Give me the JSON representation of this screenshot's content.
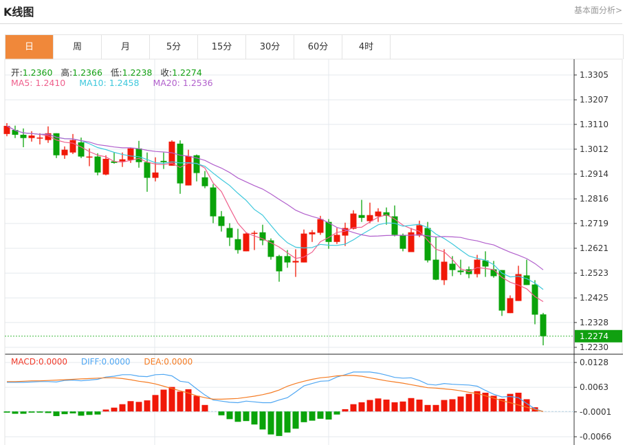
{
  "header": {
    "title": "K线图",
    "link": "基本面分析>"
  },
  "tabs": [
    {
      "label": "日",
      "active": true
    },
    {
      "label": "周"
    },
    {
      "label": "月"
    },
    {
      "label": "5分"
    },
    {
      "label": "15分"
    },
    {
      "label": "30分"
    },
    {
      "label": "60分"
    },
    {
      "label": "4时"
    }
  ],
  "ohlc": {
    "open_label": "开:",
    "open": "1.2360",
    "high_label": "高:",
    "high": "1.2366",
    "low_label": "低:",
    "low": "1.2238",
    "close_label": "收:",
    "close": "1.2274"
  },
  "ma": {
    "ma5_label": "MA5:",
    "ma5": "1.2410",
    "ma10_label": "MA10:",
    "ma10": "1.2458",
    "ma20_label": "MA20:",
    "ma20": "1.2536"
  },
  "macd_legend": {
    "macd_label": "MACD:",
    "macd": "0.0000",
    "diff_label": "DIFF:",
    "diff": "0.0000",
    "dea_label": "DEA:",
    "dea": "0.0000"
  },
  "colors": {
    "up": "#f01808",
    "down": "#0aa30a",
    "ma5": "#ef5f8c",
    "ma10": "#3ec8dc",
    "ma20": "#b15fcc",
    "diff": "#4ea6f2",
    "dea": "#f57b22",
    "active_tab": "#f0883a"
  },
  "chart_data": [
    {
      "type": "candlestick",
      "price_axis_ticks": [
        "1.3305",
        "1.3207",
        "1.3110",
        "1.3012",
        "1.2914",
        "1.2816",
        "1.2719",
        "1.2621",
        "1.2523",
        "1.2425",
        "1.2328",
        "1.2230"
      ],
      "ylim": [
        1.223,
        1.3305
      ],
      "current_price": "1.2274",
      "candles_ohlc": [
        [
          1.3072,
          1.3115,
          1.3063,
          1.3104
        ],
        [
          1.3088,
          1.3105,
          1.3056,
          1.3069
        ],
        [
          1.3069,
          1.3094,
          1.302,
          1.3056
        ],
        [
          1.3056,
          1.3083,
          1.3042,
          1.3066
        ],
        [
          1.3056,
          1.3075,
          1.3031,
          1.3058
        ],
        [
          1.3048,
          1.3102,
          1.3037,
          1.3075
        ],
        [
          1.3075,
          1.3075,
          1.2977,
          1.2988
        ],
        [
          1.2988,
          1.3023,
          1.2974,
          1.301
        ],
        [
          1.2999,
          1.3072,
          1.2993,
          1.3048
        ],
        [
          1.3039,
          1.3058,
          1.2977,
          1.2983
        ],
        [
          1.298,
          1.3015,
          1.2945,
          1.2983
        ],
        [
          1.2983,
          1.2996,
          1.2909,
          1.292
        ],
        [
          1.2912,
          1.2988,
          1.2909,
          1.2974
        ],
        [
          1.2964,
          1.2999,
          1.2955,
          1.2958
        ],
        [
          1.2964,
          1.2999,
          1.2942,
          1.2972
        ],
        [
          1.2969,
          1.3018,
          1.2958,
          1.3015
        ],
        [
          1.3015,
          1.3045,
          1.2939,
          1.2961
        ],
        [
          1.2961,
          1.2999,
          1.2844,
          1.2899
        ],
        [
          1.2899,
          1.298,
          1.2885,
          1.292
        ],
        [
          1.2966,
          1.2999,
          1.2934,
          1.2961
        ],
        [
          1.2947,
          1.3047,
          1.2947,
          1.3042
        ],
        [
          1.3034,
          1.3047,
          1.2836,
          1.2877
        ],
        [
          1.2869,
          1.301,
          1.2869,
          1.2985
        ],
        [
          1.2988,
          1.2991,
          1.2885,
          1.2918
        ],
        [
          1.2901,
          1.2926,
          1.2858,
          1.2866
        ],
        [
          1.2861,
          1.2874,
          1.272,
          1.2747
        ],
        [
          1.2747,
          1.2768,
          1.2687,
          1.2709
        ],
        [
          1.2701,
          1.272,
          1.263,
          1.2663
        ],
        [
          1.2657,
          1.2698,
          1.26,
          1.2614
        ],
        [
          1.2609,
          1.2684,
          1.2609,
          1.2679
        ],
        [
          1.2679,
          1.269,
          1.2614,
          1.2682
        ],
        [
          1.2684,
          1.2714,
          1.2633,
          1.2652
        ],
        [
          1.2652,
          1.266,
          1.2576,
          1.2587
        ],
        [
          1.259,
          1.2595,
          1.2489,
          1.253
        ],
        [
          1.259,
          1.2614,
          1.2544,
          1.2565
        ],
        [
          1.2565,
          1.2617,
          1.2508,
          1.2571
        ],
        [
          1.2565,
          1.2695,
          1.2565,
          1.2679
        ],
        [
          1.2676,
          1.2693,
          1.2646,
          1.2684
        ],
        [
          1.2682,
          1.2749,
          1.2674,
          1.2736
        ],
        [
          1.2725,
          1.2736,
          1.2619,
          1.2646
        ],
        [
          1.2646,
          1.2701,
          1.2638,
          1.2674
        ],
        [
          1.2671,
          1.2722,
          1.263,
          1.2701
        ],
        [
          1.2698,
          1.2771,
          1.2695,
          1.2758
        ],
        [
          1.2752,
          1.2812,
          1.2725,
          1.2741
        ],
        [
          1.2728,
          1.2801,
          1.272,
          1.2752
        ],
        [
          1.2747,
          1.2779,
          1.2725,
          1.2766
        ],
        [
          1.2763,
          1.2782,
          1.2714,
          1.2749
        ],
        [
          1.2747,
          1.279,
          1.2668,
          1.2674
        ],
        [
          1.2674,
          1.2679,
          1.2609,
          1.2619
        ],
        [
          1.2606,
          1.2701,
          1.2606,
          1.2684
        ],
        [
          1.2671,
          1.273,
          1.2665,
          1.2712
        ],
        [
          1.2701,
          1.2725,
          1.2565,
          1.2573
        ],
        [
          1.2576,
          1.2665,
          1.2495,
          1.2497
        ],
        [
          1.2495,
          1.2617,
          1.2476,
          1.2568
        ],
        [
          1.256,
          1.259,
          1.2511,
          1.2535
        ],
        [
          1.2533,
          1.2576,
          1.2516,
          1.2527
        ],
        [
          1.2538,
          1.2549,
          1.2503,
          1.2519
        ],
        [
          1.2519,
          1.2595,
          1.2506,
          1.2576
        ],
        [
          1.2573,
          1.2609,
          1.2508,
          1.2549
        ],
        [
          1.2538,
          1.2571,
          1.2505,
          1.2511
        ],
        [
          1.2535,
          1.2535,
          1.2354,
          1.2375
        ],
        [
          1.2365,
          1.2435,
          1.2365,
          1.2424
        ],
        [
          1.2413,
          1.2552,
          1.2413,
          1.2519
        ],
        [
          1.2514,
          1.2576,
          1.2476,
          1.2476
        ],
        [
          1.2478,
          1.2495,
          1.2321,
          1.2359
        ],
        [
          1.236,
          1.2366,
          1.2238,
          1.2274
        ]
      ],
      "ma_periods": [
        5,
        10,
        20
      ]
    },
    {
      "type": "bar+line",
      "name": "MACD",
      "axis_ticks": [
        "0.0128",
        "0.0063",
        "-0.0001",
        "-0.0066"
      ],
      "ylim": [
        -0.0066,
        0.0128
      ],
      "macd": [
        -0.0003,
        -0.0006,
        -0.0006,
        -0.0003,
        -0.0003,
        -0.0004,
        -0.0012,
        -0.0007,
        -0.0005,
        -0.0011,
        -0.0009,
        -0.0008,
        0.0005,
        0.001,
        0.0019,
        0.0027,
        0.0025,
        0.0029,
        0.0043,
        0.0057,
        0.0064,
        0.0052,
        0.0058,
        0.0041,
        0.0017,
        0,
        -0.001,
        -0.002,
        -0.0027,
        -0.0025,
        -0.0034,
        -0.0047,
        -0.006,
        -0.0064,
        -0.0055,
        -0.0045,
        -0.0028,
        -0.0024,
        -0.0019,
        -0.0021,
        -0.0008,
        0.0006,
        0.0019,
        0.0024,
        0.003,
        0.0034,
        0.0031,
        0.0024,
        0.0026,
        0.0035,
        0.0031,
        0.0017,
        0.0017,
        0.003,
        0.0032,
        0.0039,
        0.0046,
        0.0053,
        0.0049,
        0.0041,
        0.0033,
        0.0046,
        0.0049,
        0.0032,
        0.0011,
        0
      ],
      "diff": [
        0.0076,
        0.0076,
        0.0076,
        0.0077,
        0.0078,
        0.0078,
        0.0077,
        0.0081,
        0.0082,
        0.008,
        0.0082,
        0.0084,
        0.009,
        0.0092,
        0.0096,
        0.0096,
        0.0092,
        0.0091,
        0.0096,
        0.0097,
        0.0093,
        0.0079,
        0.0076,
        0.0059,
        0.0043,
        0.003,
        0.0027,
        0.0024,
        0.0023,
        0.0027,
        0.0025,
        0.0023,
        0.0023,
        0.003,
        0.0036,
        0.0051,
        0.0067,
        0.0073,
        0.0079,
        0.008,
        0.009,
        0.0096,
        0.0103,
        0.0103,
        0.0103,
        0.01,
        0.0095,
        0.0089,
        0.0087,
        0.0088,
        0.0081,
        0.0071,
        0.0069,
        0.0073,
        0.0071,
        0.007,
        0.0069,
        0.0066,
        0.0055,
        0.0045,
        0.0038,
        0.0039,
        0.0036,
        0.0021,
        0.0007,
        0
      ],
      "dea": [
        0.0078,
        0.0078,
        0.0079,
        0.008,
        0.008,
        0.0081,
        0.0082,
        0.0083,
        0.0084,
        0.0085,
        0.0086,
        0.0087,
        0.0088,
        0.0088,
        0.0086,
        0.0083,
        0.0079,
        0.0076,
        0.0072,
        0.0066,
        0.006,
        0.0054,
        0.0048,
        0.0041,
        0.0036,
        0.0032,
        0.0032,
        0.0033,
        0.0034,
        0.0037,
        0.004,
        0.0044,
        0.0049,
        0.0056,
        0.0066,
        0.0073,
        0.0079,
        0.0084,
        0.0088,
        0.009,
        0.0093,
        0.0094,
        0.0094,
        0.0092,
        0.0088,
        0.0084,
        0.008,
        0.0077,
        0.0074,
        0.007,
        0.0066,
        0.0062,
        0.0061,
        0.0059,
        0.0057,
        0.0054,
        0.005,
        0.0047,
        0.0041,
        0.0035,
        0.0028,
        0.0023,
        0.0017,
        0.0011,
        0.0005,
        0
      ]
    }
  ]
}
